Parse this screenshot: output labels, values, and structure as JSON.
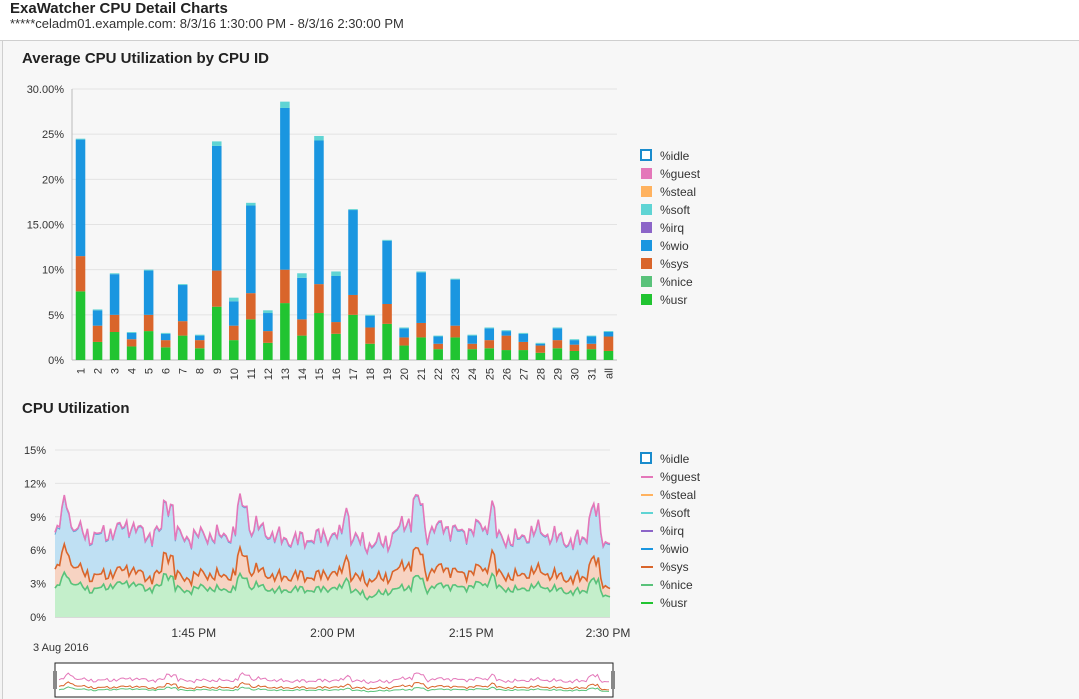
{
  "header": {
    "title": "ExaWatcher CPU Detail Charts",
    "subtitle": "*****celadm01.example.com: 8/3/16 1:30:00 PM - 8/3/16 2:30:00 PM"
  },
  "colors": {
    "idle": "#ffffff",
    "idle_border": "#1a8ccd",
    "guest": "#e477b9",
    "steal": "#ffb25f",
    "soft": "#5fd4d4",
    "irq": "#8c65c8",
    "wio": "#1a96e0",
    "sys": "#d9652b",
    "nice": "#59c27a",
    "usr": "#21c431"
  },
  "chart_data": [
    {
      "type": "bar",
      "stacked": true,
      "title": "Average CPU Utilization by CPU ID",
      "ylim": [
        0,
        30
      ],
      "yticks": [
        "0%",
        "5%",
        "10%",
        "15.00%",
        "20%",
        "25%",
        "30.00%"
      ],
      "ytick_values": [
        0,
        5,
        10,
        15,
        20,
        25,
        30
      ],
      "categories": [
        "1",
        "2",
        "3",
        "4",
        "5",
        "6",
        "7",
        "8",
        "9",
        "10",
        "11",
        "12",
        "13",
        "14",
        "15",
        "16",
        "17",
        "18",
        "19",
        "20",
        "21",
        "22",
        "23",
        "24",
        "25",
        "26",
        "27",
        "28",
        "29",
        "30",
        "31",
        "all"
      ],
      "legend": [
        "%idle",
        "%guest",
        "%steal",
        "%soft",
        "%irq",
        "%wio",
        "%sys",
        "%nice",
        "%usr"
      ],
      "series": [
        {
          "name": "%usr",
          "values": [
            7.6,
            2.0,
            3.1,
            1.5,
            3.2,
            1.4,
            2.7,
            1.3,
            5.9,
            2.2,
            4.5,
            1.9,
            6.3,
            2.7,
            5.2,
            2.9,
            5.0,
            1.8,
            4.0,
            1.6,
            2.5,
            1.2,
            2.5,
            1.2,
            1.3,
            1.1,
            1.1,
            0.8,
            1.3,
            1.0,
            1.2,
            1.0
          ]
        },
        {
          "name": "%nice",
          "values": [
            0,
            0,
            0,
            0,
            0,
            0,
            0,
            0,
            0,
            0,
            0,
            0,
            0,
            0,
            0,
            0,
            0,
            0,
            0,
            0,
            0,
            0,
            0,
            0,
            0,
            0,
            0,
            0,
            0,
            0,
            0,
            0
          ]
        },
        {
          "name": "%sys",
          "values": [
            3.9,
            1.8,
            1.9,
            0.8,
            1.8,
            0.8,
            1.6,
            0.9,
            4.0,
            1.6,
            2.9,
            1.3,
            3.7,
            1.8,
            3.2,
            1.3,
            2.2,
            1.8,
            2.2,
            0.9,
            1.6,
            0.6,
            1.3,
            0.6,
            0.9,
            1.6,
            0.9,
            0.8,
            0.9,
            0.7,
            0.6,
            1.6
          ]
        },
        {
          "name": "%wio",
          "values": [
            12.9,
            1.7,
            4.5,
            0.7,
            4.9,
            0.7,
            4.0,
            0.5,
            13.8,
            2.7,
            9.7,
            2.0,
            17.9,
            4.6,
            15.9,
            5.1,
            9.4,
            1.3,
            7.0,
            1.0,
            5.6,
            0.8,
            5.1,
            0.9,
            1.3,
            0.5,
            0.9,
            0.2,
            1.3,
            0.5,
            0.8,
            0.5
          ]
        },
        {
          "name": "%irq",
          "values": [
            0,
            0,
            0,
            0,
            0,
            0,
            0,
            0,
            0,
            0,
            0,
            0,
            0,
            0,
            0,
            0,
            0,
            0,
            0,
            0,
            0,
            0,
            0,
            0,
            0,
            0,
            0,
            0,
            0,
            0,
            0,
            0
          ]
        },
        {
          "name": "%soft",
          "values": [
            0.1,
            0.1,
            0.1,
            0.1,
            0.1,
            0.1,
            0.1,
            0.1,
            0.5,
            0.4,
            0.3,
            0.3,
            0.7,
            0.5,
            0.5,
            0.5,
            0.1,
            0.1,
            0.1,
            0.1,
            0.1,
            0.1,
            0.1,
            0.1,
            0.1,
            0.1,
            0.1,
            0.1,
            0.1,
            0.1,
            0.1,
            0.1
          ]
        },
        {
          "name": "%steal",
          "values": [
            0,
            0,
            0,
            0,
            0,
            0,
            0,
            0,
            0,
            0,
            0,
            0,
            0,
            0,
            0,
            0,
            0,
            0,
            0,
            0,
            0,
            0,
            0,
            0,
            0,
            0,
            0,
            0,
            0,
            0,
            0,
            0
          ]
        },
        {
          "name": "%guest",
          "values": [
            0,
            0,
            0,
            0,
            0,
            0,
            0,
            0,
            0,
            0,
            0,
            0,
            0,
            0,
            0,
            0,
            0,
            0,
            0,
            0,
            0,
            0,
            0,
            0,
            0,
            0,
            0,
            0,
            0,
            0,
            0,
            0
          ]
        },
        {
          "name": "%idle",
          "values": [
            0,
            0,
            0,
            0,
            0,
            0,
            0,
            0,
            0,
            0,
            0,
            0,
            0,
            0,
            0,
            0,
            0,
            0,
            0,
            0,
            0,
            0,
            0,
            0,
            0,
            0,
            0,
            0,
            0,
            0,
            0,
            0
          ]
        }
      ]
    },
    {
      "type": "area",
      "title": "CPU Utilization",
      "ylim": [
        0,
        15
      ],
      "yticks": [
        "0%",
        "3%",
        "6%",
        "9%",
        "12%",
        "15%"
      ],
      "ytick_values": [
        0,
        3,
        6,
        9,
        12,
        15
      ],
      "x_range": [
        "1:30 PM",
        "2:30 PM"
      ],
      "xticks": [
        "1:45 PM",
        "2:00 PM",
        "2:15 PM",
        "2:30 PM"
      ],
      "xtick_minutes": [
        15,
        30,
        45,
        60
      ],
      "date_label": "3 Aug 2016",
      "legend": [
        "%idle",
        "%guest",
        "%steal",
        "%soft",
        "%irq",
        "%wio",
        "%sys",
        "%nice",
        "%usr"
      ],
      "sample_minutes": [
        0,
        2,
        4,
        6,
        8,
        10,
        12,
        14,
        16,
        18,
        20,
        22,
        24,
        26,
        28,
        30,
        32,
        34,
        36,
        38,
        40,
        42,
        44,
        46,
        48,
        50,
        52,
        54,
        56,
        58,
        60
      ],
      "series": [
        {
          "name": "%usr",
          "values": [
            2.6,
            3.0,
            2.4,
            2.8,
            3.1,
            2.5,
            2.9,
            2.3,
            2.7,
            2.4,
            2.6,
            2.8,
            2.3,
            2.5,
            2.4,
            2.6,
            2.4,
            1.8,
            2.3,
            2.7,
            2.5,
            2.9,
            2.6,
            3.0,
            2.6,
            2.4,
            2.8,
            2.5,
            2.2,
            2.4,
            1.9
          ]
        },
        {
          "name": "%sys",
          "values": [
            4.3,
            4.6,
            3.6,
            3.9,
            4.4,
            3.5,
            4.1,
            3.4,
            3.9,
            3.6,
            4.0,
            4.2,
            3.5,
            3.7,
            3.6,
            4.0,
            3.6,
            3.3,
            3.6,
            4.8,
            3.9,
            4.5,
            3.8,
            4.4,
            3.8,
            3.6,
            4.2,
            3.7,
            3.4,
            3.6,
            2.7
          ]
        },
        {
          "name": "%wio",
          "values": [
            7.4,
            7.9,
            7.1,
            7.5,
            8.2,
            7.2,
            7.8,
            7.0,
            7.3,
            7.1,
            7.6,
            8.0,
            7.0,
            6.8,
            7.0,
            7.3,
            7.0,
            6.4,
            6.7,
            8.6,
            7.5,
            8.1,
            7.4,
            8.1,
            7.0,
            6.8,
            7.7,
            7.1,
            6.6,
            7.2,
            6.7
          ]
        },
        {
          "name": "%guest",
          "values": [
            7.6,
            8.0,
            7.2,
            7.6,
            8.3,
            7.3,
            7.9,
            7.1,
            7.4,
            7.2,
            7.7,
            8.1,
            7.1,
            6.9,
            7.1,
            7.4,
            7.1,
            6.5,
            6.8,
            8.7,
            7.6,
            8.2,
            7.5,
            8.2,
            7.1,
            6.9,
            7.8,
            7.2,
            6.7,
            7.3,
            6.8
          ]
        }
      ]
    }
  ]
}
